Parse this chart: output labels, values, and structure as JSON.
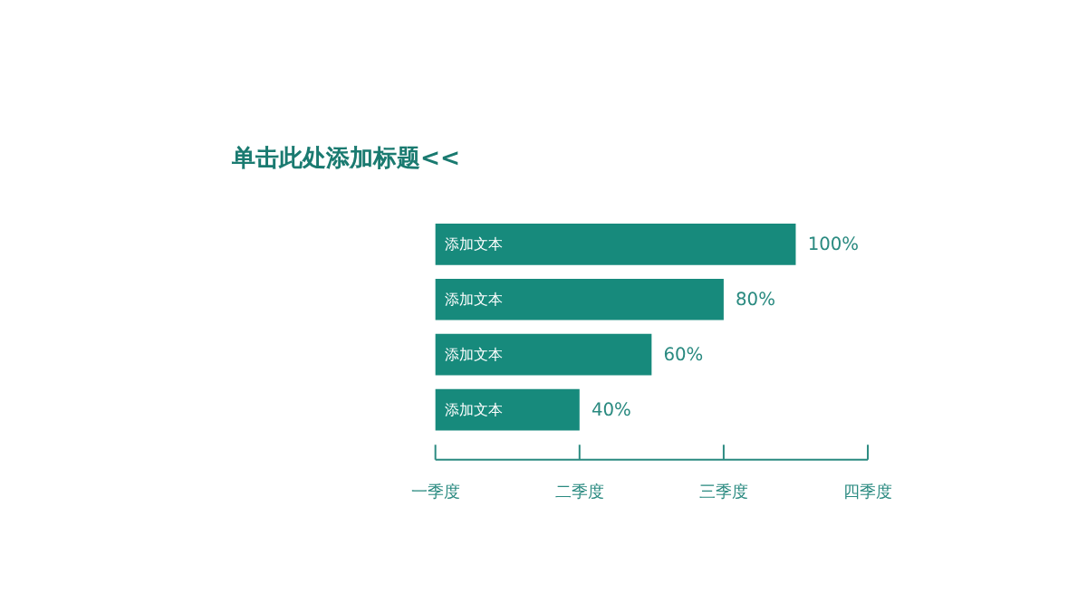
{
  "chart_data": {
    "type": "bar",
    "orientation": "horizontal",
    "title": "单击此处添加标题<<",
    "categories": [
      "添加文本",
      "添加文本",
      "添加文本",
      "添加文本"
    ],
    "values": [
      100,
      80,
      60,
      40
    ],
    "color": "#178a7c",
    "value_labels": [
      "100%",
      "80%",
      "60%",
      "40%"
    ],
    "annotations": [
      "一季度",
      "二季度",
      "三季度",
      "四季度"
    ]
  }
}
